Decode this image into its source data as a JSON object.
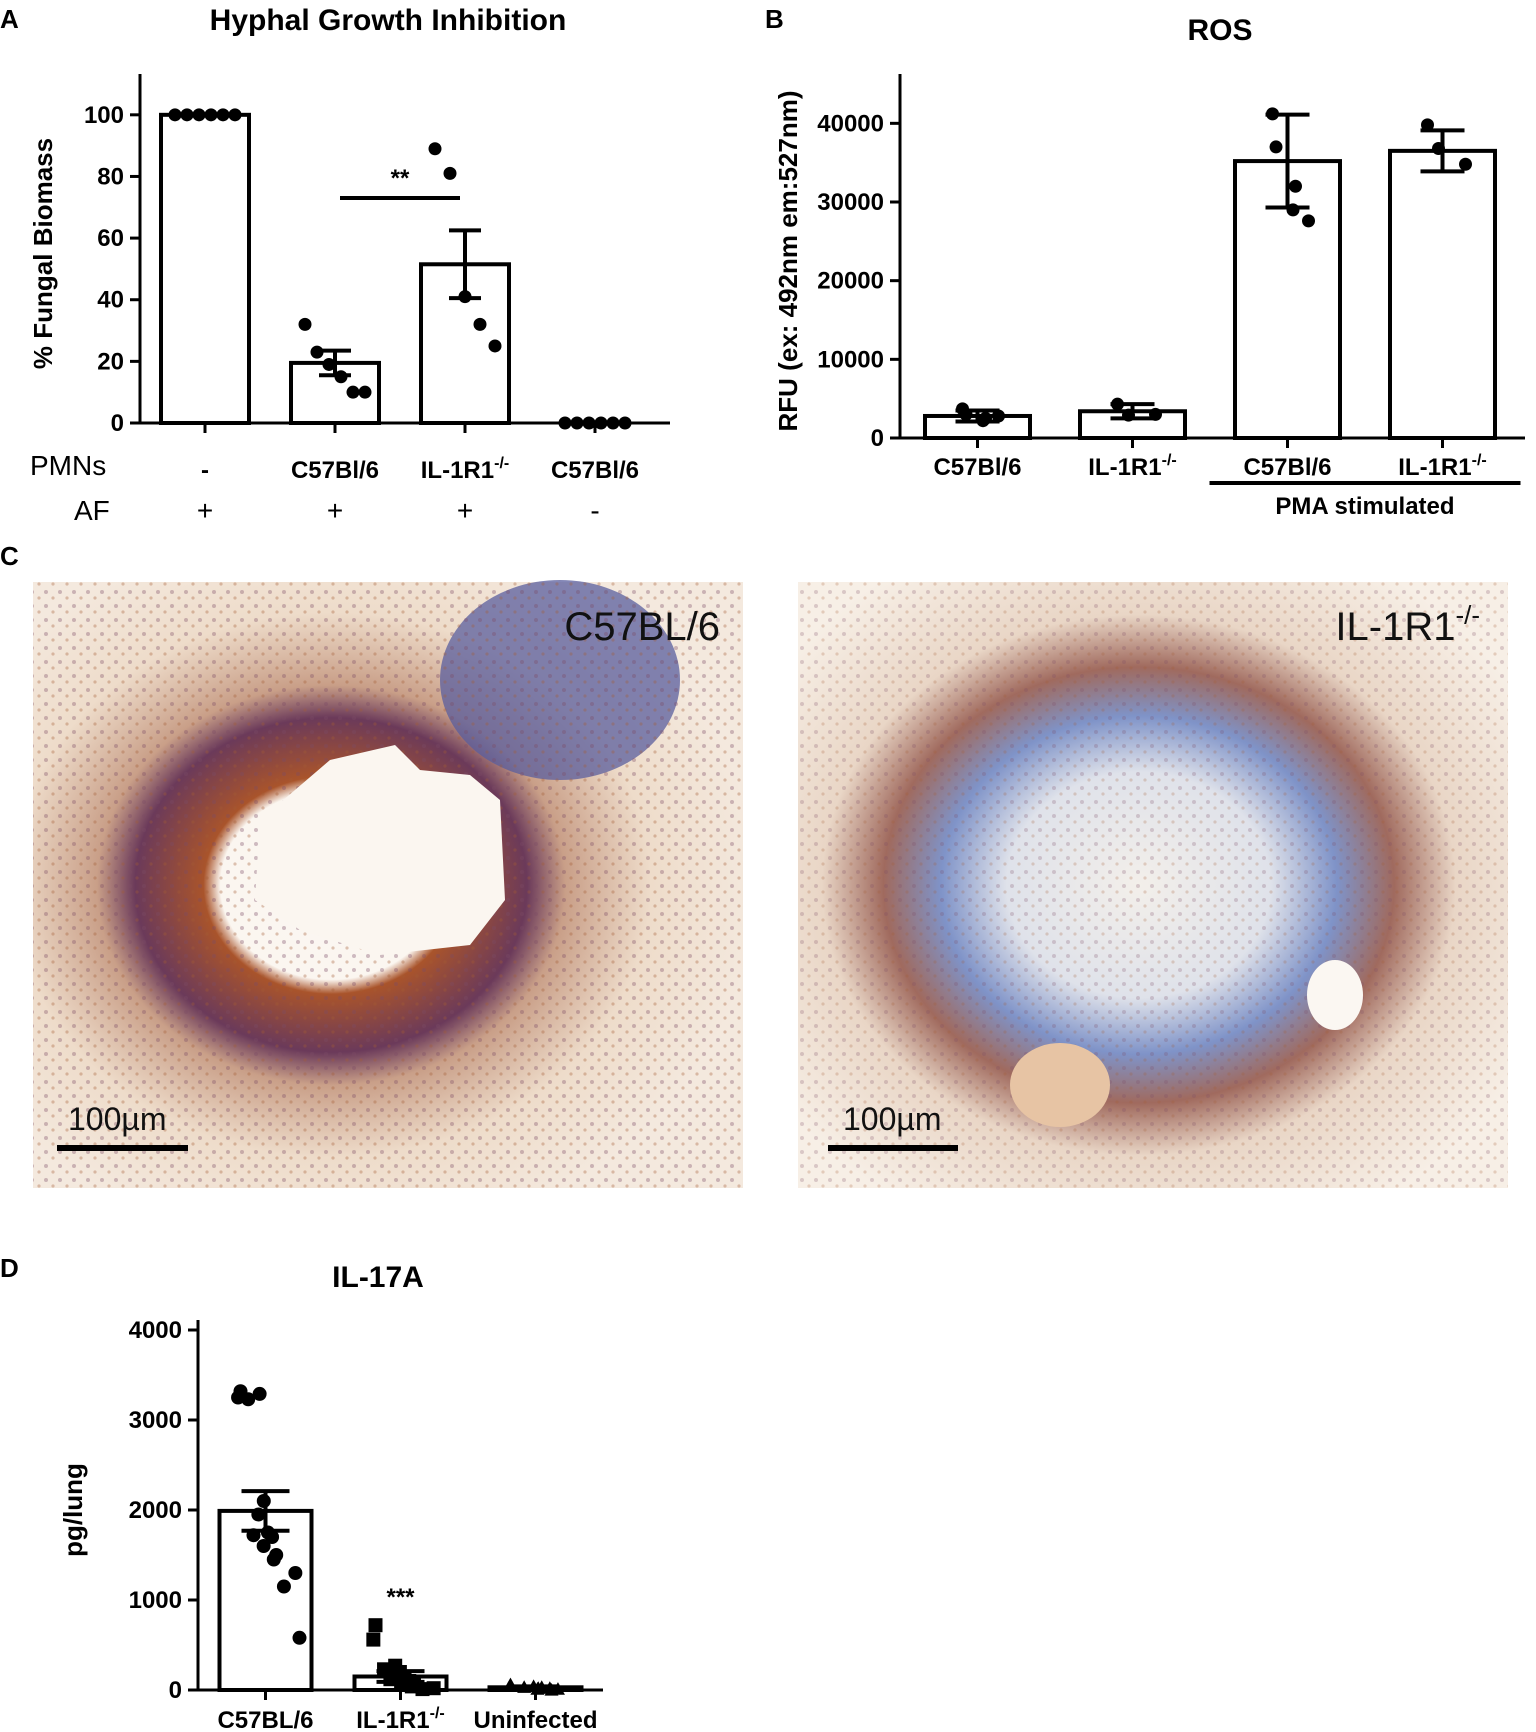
{
  "panels": {
    "A": {
      "letter": "A"
    },
    "B": {
      "letter": "B"
    },
    "C": {
      "letter": "C",
      "left_label": "C57BL/6",
      "right_label": "IL-1R1",
      "right_label_sup": "-/-",
      "scale_bar_label": "100µm"
    },
    "D": {
      "letter": "D"
    }
  },
  "chart_data": [
    {
      "id": "A",
      "type": "bar",
      "title": "Hyphal Growth Inhibition",
      "ylabel": "% Fungal Biomass",
      "ylim": [
        0,
        110
      ],
      "yticks": [
        "0",
        "20",
        "40",
        "60",
        "80",
        "100"
      ],
      "row_labels": [
        "PMNs",
        "AF"
      ],
      "categories": [
        {
          "pmns": "-",
          "pmns_sup": "",
          "af": "+"
        },
        {
          "pmns": "C57Bl/6",
          "pmns_sup": "",
          "af": "+"
        },
        {
          "pmns": "IL-1R1",
          "pmns_sup": "-/-",
          "af": "+"
        },
        {
          "pmns": "C57Bl/6",
          "pmns_sup": "",
          "af": "-"
        }
      ],
      "values": [
        100,
        19.5,
        51.5,
        0
      ],
      "error": [
        0,
        4,
        11,
        0
      ],
      "points": [
        [
          100,
          100,
          100,
          100,
          100,
          100
        ],
        [
          32,
          23,
          19,
          15,
          10,
          10
        ],
        [
          89,
          81,
          41,
          32,
          25
        ],
        [
          0,
          0,
          0,
          0,
          0,
          0
        ]
      ],
      "significance": {
        "label": "**",
        "between": [
          1,
          2
        ]
      }
    },
    {
      "id": "B",
      "type": "bar",
      "title": "ROS",
      "ylabel": "RFU (ex: 492nm em:527nm)",
      "ylim": [
        0,
        45000
      ],
      "yticks": [
        "0",
        "10000",
        "20000",
        "30000",
        "40000"
      ],
      "categories": [
        {
          "label": "C57Bl/6",
          "sup": ""
        },
        {
          "label": "IL-1R1",
          "sup": "-/-"
        },
        {
          "label": "C57Bl/6",
          "sup": ""
        },
        {
          "label": "IL-1R1",
          "sup": "-/-"
        }
      ],
      "values": [
        2800,
        3400,
        35200,
        36500
      ],
      "error": [
        700,
        900,
        5900,
        2600
      ],
      "points": [
        [
          3700,
          3000,
          2500,
          2200,
          2800
        ],
        [
          4300,
          2900,
          3000
        ],
        [
          41200,
          37000,
          32000,
          29000,
          27600
        ],
        [
          39800,
          36800,
          34800
        ]
      ],
      "group_label": "PMA stimulated"
    },
    {
      "id": "D",
      "type": "bar",
      "title": "IL-17A",
      "ylabel": "pg/lung",
      "ylim": [
        0,
        4000
      ],
      "yticks": [
        "0",
        "1000",
        "2000",
        "3000",
        "4000"
      ],
      "categories": [
        {
          "label": "C57BL/6",
          "sup": ""
        },
        {
          "label": "IL-1R1",
          "sup": "-/-"
        },
        {
          "label": "Uninfected",
          "sup": ""
        }
      ],
      "values": [
        1990,
        150,
        30
      ],
      "error": [
        220,
        60,
        10
      ],
      "points": [
        [
          3320,
          3250,
          3290,
          3230,
          2100,
          1950,
          1750,
          1720,
          1700,
          1600,
          1500,
          1450,
          1300,
          1150,
          580
        ],
        [
          720,
          560,
          270,
          230,
          200,
          170,
          150,
          120,
          100,
          80,
          60,
          40,
          20,
          10
        ],
        [
          60,
          50,
          40,
          30,
          30,
          20,
          20,
          10,
          10,
          0
        ]
      ],
      "markers": [
        "circle",
        "square",
        "triangle"
      ],
      "significance": {
        "label": "***",
        "over": 1
      }
    }
  ],
  "colors": {
    "ink": "#000000",
    "stain_brown": "#9b4a22",
    "stain_blue": "#4a5fa8",
    "tissue_bg": "#f1e6da"
  }
}
